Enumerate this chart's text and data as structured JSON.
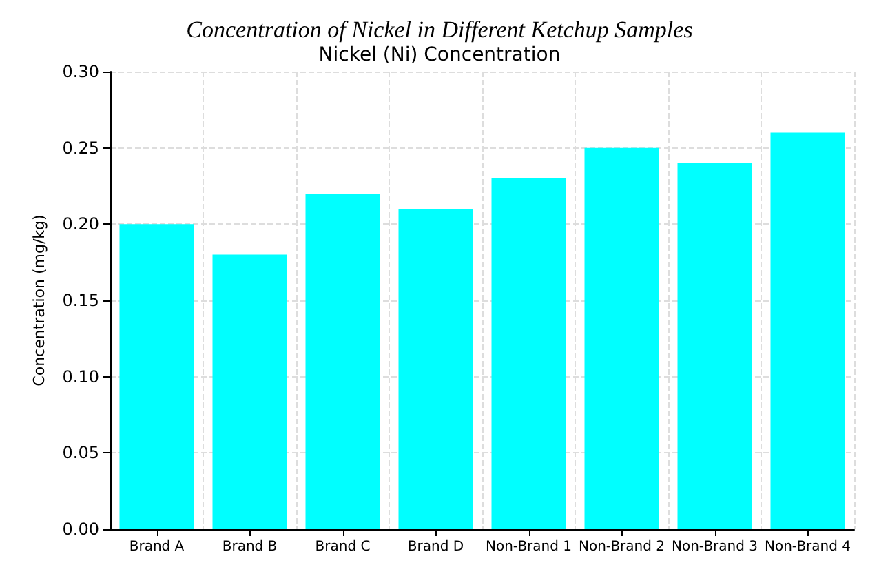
{
  "chart_data": {
    "type": "bar",
    "title": "Concentration of Nickel in Different Ketchup Samples",
    "subtitle": "Nickel (Ni) Concentration",
    "ylabel": "Concentration (mg/kg)",
    "categories": [
      "Brand A",
      "Brand B",
      "Brand C",
      "Brand D",
      "Non-Brand 1",
      "Non-Brand 2",
      "Non-Brand 3",
      "Non-Brand 4"
    ],
    "values": [
      0.2,
      0.18,
      0.22,
      0.21,
      0.23,
      0.25,
      0.24,
      0.26
    ],
    "color": "#00ffff",
    "ylim": [
      0,
      0.3
    ],
    "yticks": [
      {
        "value": 0,
        "label": "0.00"
      },
      0.05,
      {
        "value": 0.1,
        "label": "0.10"
      },
      0.15,
      {
        "value": 0.2,
        "label": "0.20"
      },
      0.25,
      {
        "value": 0.3,
        "label": "0.30"
      }
    ],
    "grid": true
  }
}
